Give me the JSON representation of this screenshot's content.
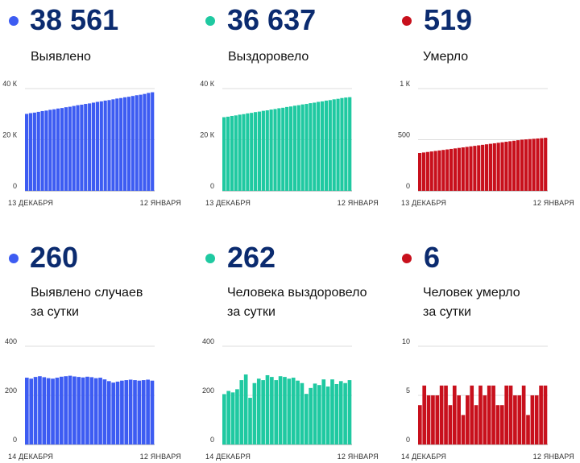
{
  "panels": [
    {
      "id": "cumulative-cases",
      "value": "38 561",
      "label_lines": [
        "Выявлено"
      ],
      "color": "#3d5cf2",
      "chart_data": {
        "type": "bar",
        "x_start": "13 ДЕКАБРЯ",
        "x_end": "12 ЯНВАРЯ",
        "ylim": [
          0,
          40000
        ],
        "yticks": [
          {
            "v": 0,
            "label": "0"
          },
          {
            "v": 20000,
            "label": "20 К"
          },
          {
            "v": 40000,
            "label": "40 К"
          }
        ],
        "values": [
          30100,
          30400,
          30600,
          30900,
          31200,
          31400,
          31700,
          31900,
          32200,
          32400,
          32700,
          32900,
          33200,
          33500,
          33700,
          34000,
          34200,
          34500,
          34800,
          35000,
          35300,
          35500,
          35800,
          36100,
          36300,
          36600,
          36800,
          37100,
          37400,
          37600,
          37900,
          38300,
          38561
        ]
      }
    },
    {
      "id": "cumulative-recovered",
      "value": "36 637",
      "label_lines": [
        "Выздоровело"
      ],
      "color": "#1fc9a1",
      "chart_data": {
        "type": "bar",
        "x_start": "13 ДЕКАБРЯ",
        "x_end": "12 ЯНВАРЯ",
        "ylim": [
          0,
          40000
        ],
        "yticks": [
          {
            "v": 0,
            "label": "0"
          },
          {
            "v": 20000,
            "label": "20 К"
          },
          {
            "v": 40000,
            "label": "40 К"
          }
        ],
        "values": [
          28800,
          29000,
          29300,
          29500,
          29800,
          30000,
          30300,
          30500,
          30800,
          31000,
          31300,
          31500,
          31800,
          32000,
          32300,
          32500,
          32800,
          33000,
          33300,
          33500,
          33800,
          34000,
          34300,
          34500,
          34800,
          35000,
          35300,
          35500,
          35800,
          36000,
          36300,
          36500,
          36637
        ]
      }
    },
    {
      "id": "cumulative-deaths",
      "value": "519",
      "label_lines": [
        "Умерло"
      ],
      "color": "#c8101c",
      "chart_data": {
        "type": "bar",
        "x_start": "13 ДЕКАБРЯ",
        "x_end": "12 ЯНВАРЯ",
        "ylim": [
          0,
          1000
        ],
        "yticks": [
          {
            "v": 0,
            "label": "0"
          },
          {
            "v": 500,
            "label": "500"
          },
          {
            "v": 1000,
            "label": "1 К"
          }
        ],
        "values": [
          370,
          375,
          380,
          385,
          390,
          395,
          400,
          405,
          410,
          415,
          420,
          425,
          430,
          435,
          440,
          445,
          450,
          455,
          460,
          465,
          470,
          475,
          480,
          485,
          490,
          495,
          500,
          503,
          506,
          509,
          512,
          515,
          519
        ]
      }
    },
    {
      "id": "daily-cases",
      "value": "260",
      "label_lines": [
        "Выявлено случаев",
        "за сутки"
      ],
      "color": "#3d5cf2",
      "chart_data": {
        "type": "bar",
        "x_start": "14 ДЕКАБРЯ",
        "x_end": "12 ЯНВАРЯ",
        "ylim": [
          0,
          400
        ],
        "yticks": [
          {
            "v": 0,
            "label": "0"
          },
          {
            "v": 200,
            "label": "200"
          },
          {
            "v": 400,
            "label": "400"
          }
        ],
        "values": [
          272,
          268,
          275,
          278,
          274,
          270,
          268,
          272,
          276,
          278,
          280,
          277,
          275,
          273,
          276,
          274,
          270,
          272,
          265,
          258,
          252,
          256,
          260,
          262,
          264,
          262,
          260,
          262,
          264,
          260
        ]
      }
    },
    {
      "id": "daily-recovered",
      "value": "262",
      "label_lines": [
        "Человека выздоровело",
        "за сутки"
      ],
      "color": "#1fc9a1",
      "chart_data": {
        "type": "bar",
        "x_start": "14 ДЕКАБРЯ",
        "x_end": "12 ЯНВАРЯ",
        "ylim": [
          0,
          400
        ],
        "yticks": [
          {
            "v": 0,
            "label": "0"
          },
          {
            "v": 200,
            "label": "200"
          },
          {
            "v": 400,
            "label": "400"
          }
        ],
        "values": [
          205,
          218,
          212,
          225,
          262,
          285,
          190,
          250,
          268,
          262,
          282,
          275,
          262,
          278,
          275,
          268,
          272,
          260,
          250,
          206,
          230,
          248,
          242,
          265,
          236,
          265,
          246,
          258,
          250,
          262
        ]
      }
    },
    {
      "id": "daily-deaths",
      "value": "6",
      "label_lines": [
        "Человек умерло",
        "за сутки"
      ],
      "color": "#c8101c",
      "chart_data": {
        "type": "bar",
        "x_start": "14 ДЕКАБРЯ",
        "x_end": "12 ЯНВАРЯ",
        "ylim": [
          0,
          10
        ],
        "yticks": [
          {
            "v": 0,
            "label": "0"
          },
          {
            "v": 5,
            "label": "5"
          },
          {
            "v": 10,
            "label": "10"
          }
        ],
        "values": [
          4,
          6,
          5,
          5,
          5,
          6,
          6,
          4,
          6,
          5,
          3,
          5,
          6,
          4,
          6,
          5,
          6,
          6,
          4,
          4,
          6,
          6,
          5,
          5,
          6,
          3,
          5,
          5,
          6,
          6
        ]
      }
    }
  ]
}
